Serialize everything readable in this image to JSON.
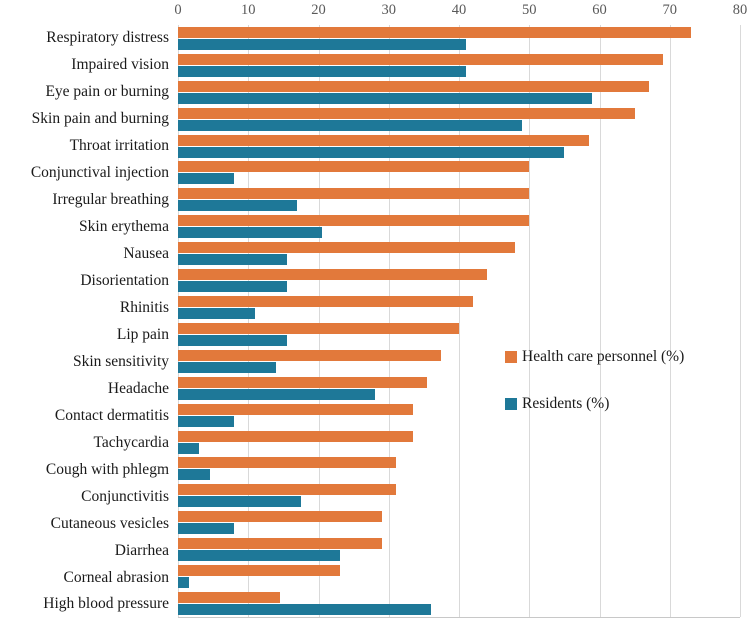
{
  "chart_data": {
    "type": "bar",
    "orientation": "horizontal",
    "title": "",
    "xlabel": "",
    "ylabel": "",
    "xlim": [
      0,
      80
    ],
    "x_ticks": [
      0,
      10,
      20,
      30,
      40,
      50,
      60,
      70,
      80
    ],
    "grid": "vertical",
    "legend_position": "middle-right",
    "categories": [
      "Respiratory distress",
      "Impaired vision",
      "Eye pain or burning",
      "Skin pain and burning",
      "Throat irritation",
      "Conjunctival injection",
      "Irregular breathing",
      "Skin erythema",
      "Nausea",
      "Disorientation",
      "Rhinitis",
      "Lip pain",
      "Skin sensitivity",
      "Headache",
      "Contact dermatitis",
      "Tachycardia",
      "Cough with phlegm",
      "Conjunctivitis",
      "Cutaneous vesicles",
      "Diarrhea",
      "Corneal abrasion",
      "High blood pressure"
    ],
    "series": [
      {
        "name": "Health care personnel (%)",
        "color": "#E2793B",
        "values": [
          73,
          69,
          67,
          65,
          58.5,
          50,
          50,
          50,
          48,
          44,
          42,
          40,
          37.5,
          35.5,
          33.5,
          33.5,
          31,
          31,
          29,
          29,
          23,
          14.5
        ]
      },
      {
        "name": "Residents (%)",
        "color": "#1E7898",
        "values": [
          41,
          41,
          59,
          49,
          55,
          8,
          17,
          20.5,
          15.5,
          15.5,
          11,
          15.5,
          14,
          28,
          8,
          3,
          4.5,
          17.5,
          8,
          23,
          1.5,
          36
        ]
      }
    ]
  }
}
